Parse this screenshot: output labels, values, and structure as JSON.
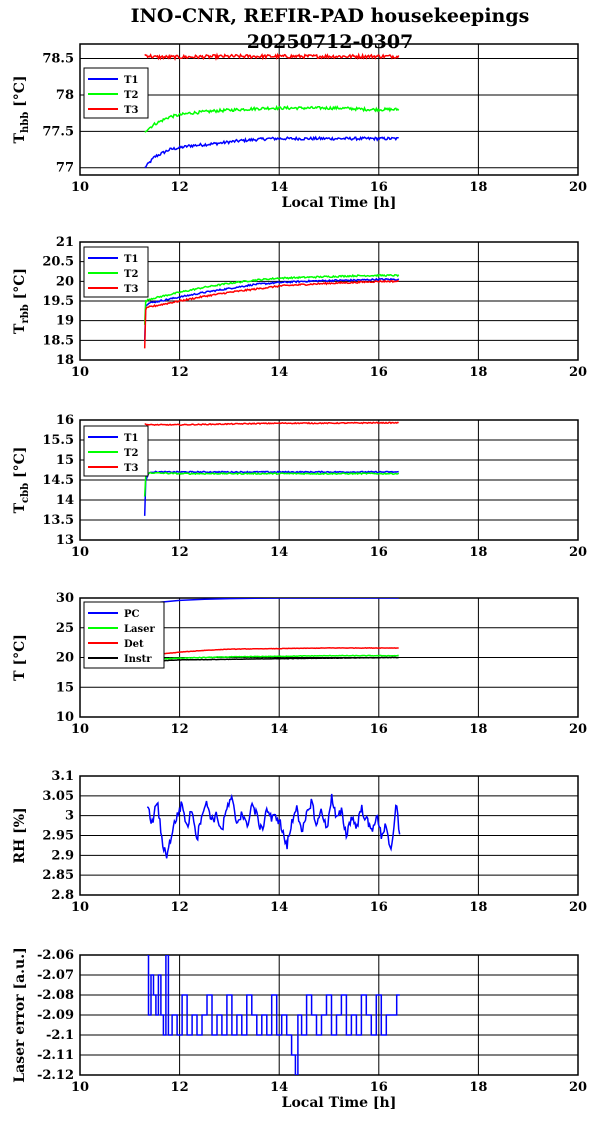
{
  "title_line1": "INO-CNR, REFIR-PAD housekeepings",
  "title_line2": "20250712-0307",
  "chart_data": [
    {
      "type": "line",
      "ylabel_main": "T",
      "ylabel_sub": "hbb",
      "ylabel_unit": " [°C]",
      "xlabel": "Local Time [h]",
      "xlim": [
        10,
        20
      ],
      "xticks": [
        "10",
        "12",
        "14",
        "16",
        "18",
        "20"
      ],
      "ylim": [
        76.9,
        78.7
      ],
      "yticks": [
        {
          "v": 77,
          "label": "77"
        },
        {
          "v": 77.5,
          "label": "77.5"
        },
        {
          "v": 78,
          "label": "78"
        },
        {
          "v": 78.5,
          "label": "78.5"
        }
      ],
      "series": [
        {
          "name": "T1",
          "color": "#0000ff",
          "x": [
            11.3,
            11.5,
            11.8,
            12.2,
            12.7,
            13.2,
            13.8,
            14.5,
            15.2,
            15.8,
            16.4
          ],
          "y": [
            77.0,
            77.15,
            77.25,
            77.3,
            77.33,
            77.37,
            77.4,
            77.4,
            77.4,
            77.4,
            77.4
          ],
          "noise": 0.02
        },
        {
          "name": "T2",
          "color": "#00ff00",
          "x": [
            11.3,
            11.5,
            11.8,
            12.2,
            12.7,
            13.2,
            13.8,
            14.5,
            15.2,
            15.8,
            16.4
          ],
          "y": [
            77.5,
            77.6,
            77.7,
            77.75,
            77.78,
            77.8,
            77.82,
            77.82,
            77.82,
            77.8,
            77.8
          ],
          "noise": 0.02
        },
        {
          "name": "T3",
          "color": "#ff0000",
          "x": [
            11.3,
            11.5,
            12.0,
            13.0,
            14.0,
            15.0,
            16.0,
            16.4
          ],
          "y": [
            78.55,
            78.52,
            78.52,
            78.53,
            78.53,
            78.53,
            78.53,
            78.53
          ],
          "noise": 0.025
        }
      ]
    },
    {
      "type": "line",
      "ylabel_main": "T",
      "ylabel_sub": "rbb",
      "ylabel_unit": " [°C]",
      "xlabel": "",
      "xlim": [
        10,
        20
      ],
      "xticks": [
        "10",
        "12",
        "14",
        "16",
        "18",
        "20"
      ],
      "ylim": [
        18,
        21
      ],
      "yticks": [
        {
          "v": 18,
          "label": "18"
        },
        {
          "v": 18.5,
          "label": "18.5"
        },
        {
          "v": 19,
          "label": "19"
        },
        {
          "v": 19.5,
          "label": "19.5"
        },
        {
          "v": 20,
          "label": "20"
        },
        {
          "v": 20.5,
          "label": "20.5"
        },
        {
          "v": 21,
          "label": "21"
        }
      ],
      "series": [
        {
          "name": "T1",
          "color": "#0000ff",
          "x": [
            11.3,
            11.32,
            11.4,
            12.0,
            12.5,
            13.0,
            13.5,
            14.0,
            14.5,
            15.0,
            15.5,
            16.0,
            16.4
          ],
          "y": [
            18.5,
            19.4,
            19.45,
            19.6,
            19.72,
            19.82,
            19.92,
            19.97,
            20.0,
            20.02,
            20.03,
            20.05,
            20.05
          ],
          "noise": 0.02
        },
        {
          "name": "T2",
          "color": "#00ff00",
          "x": [
            11.3,
            11.32,
            11.4,
            12.0,
            12.5,
            13.0,
            13.5,
            14.0,
            14.5,
            15.0,
            15.5,
            16.0,
            16.4
          ],
          "y": [
            18.9,
            19.5,
            19.55,
            19.72,
            19.85,
            19.95,
            20.03,
            20.08,
            20.1,
            20.12,
            20.14,
            20.15,
            20.15
          ],
          "noise": 0.02
        },
        {
          "name": "T3",
          "color": "#ff0000",
          "x": [
            11.3,
            11.32,
            11.4,
            12.0,
            12.5,
            13.0,
            13.5,
            14.0,
            14.5,
            15.0,
            15.5,
            16.0,
            16.4
          ],
          "y": [
            18.3,
            19.3,
            19.35,
            19.5,
            19.62,
            19.72,
            19.8,
            19.88,
            19.92,
            19.95,
            19.97,
            20.0,
            20.0
          ],
          "noise": 0.02
        }
      ]
    },
    {
      "type": "line",
      "ylabel_main": "T",
      "ylabel_sub": "cbb",
      "ylabel_unit": " [°C]",
      "xlabel": "",
      "xlim": [
        10,
        20
      ],
      "xticks": [
        "10",
        "12",
        "14",
        "16",
        "18",
        "20"
      ],
      "ylim": [
        13,
        16
      ],
      "yticks": [
        {
          "v": 13,
          "label": "13"
        },
        {
          "v": 13.5,
          "label": "13.5"
        },
        {
          "v": 14,
          "label": "14"
        },
        {
          "v": 14.5,
          "label": "14.5"
        },
        {
          "v": 15,
          "label": "15"
        },
        {
          "v": 15.5,
          "label": "15.5"
        },
        {
          "v": 16,
          "label": "16"
        }
      ],
      "series": [
        {
          "name": "T1",
          "color": "#0000ff",
          "x": [
            11.3,
            11.32,
            11.4,
            12.0,
            13.0,
            14.0,
            15.0,
            16.0,
            16.4
          ],
          "y": [
            13.6,
            14.5,
            14.7,
            14.7,
            14.7,
            14.7,
            14.7,
            14.7,
            14.7
          ],
          "noise": 0.015
        },
        {
          "name": "T2",
          "color": "#00ff00",
          "x": [
            11.3,
            11.32,
            11.4,
            12.0,
            13.0,
            14.0,
            15.0,
            16.0,
            16.4
          ],
          "y": [
            14.1,
            14.6,
            14.68,
            14.66,
            14.66,
            14.66,
            14.66,
            14.66,
            14.66
          ],
          "noise": 0.015
        },
        {
          "name": "T3",
          "color": "#ff0000",
          "x": [
            11.3,
            11.4,
            12.0,
            13.0,
            14.0,
            15.0,
            16.0,
            16.4
          ],
          "y": [
            15.9,
            15.88,
            15.88,
            15.9,
            15.92,
            15.92,
            15.93,
            15.93
          ],
          "noise": 0.012
        }
      ]
    },
    {
      "type": "line",
      "ylabel_main": "T [°C]",
      "ylabel_sub": "",
      "ylabel_unit": "",
      "xlabel": "",
      "xlim": [
        10,
        20
      ],
      "xticks": [
        "10",
        "12",
        "14",
        "16",
        "18",
        "20"
      ],
      "ylim": [
        10,
        30
      ],
      "yticks": [
        {
          "v": 10,
          "label": "10"
        },
        {
          "v": 15,
          "label": "15"
        },
        {
          "v": 20,
          "label": "20"
        },
        {
          "v": 25,
          "label": "25"
        },
        {
          "v": 30,
          "label": "30"
        }
      ],
      "series": [
        {
          "name": "PC",
          "color": "#0000ff",
          "x": [
            11.3,
            11.6,
            12.0,
            12.5,
            13.0,
            14.0,
            15.0,
            16.4
          ],
          "y": [
            29.0,
            29.3,
            29.6,
            29.8,
            29.9,
            30.0,
            30.0,
            30.0
          ],
          "noise": 0
        },
        {
          "name": "Laser",
          "color": "#00ff00",
          "x": [
            11.3,
            12.0,
            13.0,
            14.0,
            15.0,
            16.4
          ],
          "y": [
            19.6,
            19.9,
            20.1,
            20.2,
            20.3,
            20.3
          ],
          "noise": 0.05
        },
        {
          "name": "Det",
          "color": "#ff0000",
          "x": [
            11.3,
            12.0,
            12.5,
            13.0,
            14.0,
            15.0,
            16.4
          ],
          "y": [
            20.3,
            20.9,
            21.2,
            21.4,
            21.5,
            21.6,
            21.6
          ],
          "noise": 0.03
        },
        {
          "name": "Instr",
          "color": "#000000",
          "x": [
            11.3,
            12.0,
            13.0,
            14.0,
            15.0,
            16.4
          ],
          "y": [
            19.3,
            19.6,
            19.7,
            19.8,
            19.9,
            20.0
          ],
          "noise": 0.03
        }
      ]
    },
    {
      "type": "line",
      "ylabel_main": "RH [%]",
      "ylabel_sub": "",
      "ylabel_unit": "",
      "xlabel": "",
      "xlim": [
        10,
        20
      ],
      "xticks": [
        "10",
        "12",
        "14",
        "16",
        "18",
        "20"
      ],
      "ylim": [
        2.8,
        3.1
      ],
      "yticks": [
        {
          "v": 2.8,
          "label": "2.8"
        },
        {
          "v": 2.85,
          "label": "2.85"
        },
        {
          "v": 2.9,
          "label": "2.9"
        },
        {
          "v": 2.95,
          "label": "2.95"
        },
        {
          "v": 3.0,
          "label": "3"
        },
        {
          "v": 3.05,
          "label": "3.05"
        },
        {
          "v": 3.1,
          "label": "3.1"
        }
      ],
      "series": [
        {
          "name": "",
          "color": "#0000ff",
          "x": [
            11.35,
            11.45,
            11.55,
            11.65,
            11.75,
            11.85,
            11.95,
            12.05,
            12.15,
            12.25,
            12.35,
            12.45,
            12.55,
            12.65,
            12.75,
            12.85,
            12.95,
            13.05,
            13.15,
            13.25,
            13.35,
            13.45,
            13.55,
            13.65,
            13.75,
            13.85,
            13.95,
            14.05,
            14.15,
            14.25,
            14.35,
            14.45,
            14.55,
            14.65,
            14.75,
            14.85,
            14.95,
            15.05,
            15.15,
            15.25,
            15.35,
            15.45,
            15.55,
            15.65,
            15.75,
            15.85,
            15.95,
            16.05,
            16.15,
            16.25,
            16.35,
            16.42
          ],
          "y": [
            3.02,
            2.98,
            3.04,
            2.93,
            2.9,
            2.96,
            3.0,
            3.03,
            2.97,
            3.02,
            2.94,
            3.01,
            3.03,
            2.99,
            3.0,
            2.96,
            3.02,
            3.04,
            2.98,
            3.01,
            2.97,
            3.03,
            3.0,
            2.96,
            3.02,
            2.99,
            3.0,
            2.97,
            2.92,
            2.98,
            3.03,
            2.95,
            3.0,
            3.04,
            2.97,
            3.02,
            2.96,
            3.05,
            2.99,
            3.01,
            2.95,
            3.0,
            2.97,
            3.02,
            2.99,
            2.96,
            3.0,
            2.95,
            2.98,
            2.9,
            3.03,
            2.95
          ],
          "noise": 0.012
        }
      ]
    },
    {
      "type": "line",
      "ylabel_main": "Laser error [a.u.]",
      "ylabel_sub": "",
      "ylabel_unit": "",
      "xlabel": "Local Time [h]",
      "xlim": [
        10,
        20
      ],
      "xticks": [
        "10",
        "12",
        "14",
        "16",
        "18",
        "20"
      ],
      "ylim": [
        -2.12,
        -2.06
      ],
      "yticks": [
        {
          "v": -2.12,
          "label": "-2.12"
        },
        {
          "v": -2.11,
          "label": "-2.11"
        },
        {
          "v": -2.1,
          "label": "-2.1"
        },
        {
          "v": -2.09,
          "label": "-2.09"
        },
        {
          "v": -2.08,
          "label": "-2.08"
        },
        {
          "v": -2.07,
          "label": "-2.07"
        },
        {
          "v": -2.06,
          "label": "-2.06"
        }
      ],
      "series": [
        {
          "name": "",
          "color": "#0000ff",
          "x": [
            11.35,
            11.4,
            11.45,
            11.5,
            11.55,
            11.6,
            11.65,
            11.7,
            11.75,
            11.8,
            11.9,
            12.0,
            12.1,
            12.2,
            12.3,
            12.4,
            12.5,
            12.6,
            12.7,
            12.8,
            12.9,
            13.0,
            13.1,
            13.2,
            13.3,
            13.4,
            13.5,
            13.6,
            13.7,
            13.8,
            13.9,
            14.0,
            14.1,
            14.2,
            14.3,
            14.35,
            14.4,
            14.5,
            14.6,
            14.7,
            14.8,
            14.9,
            15.0,
            15.1,
            15.2,
            15.3,
            15.4,
            15.5,
            15.6,
            15.7,
            15.8,
            15.9,
            16.0,
            16.1,
            16.2,
            16.3,
            16.42
          ],
          "y": [
            -2.06,
            -2.09,
            -2.07,
            -2.08,
            -2.09,
            -2.07,
            -2.09,
            -2.1,
            -2.06,
            -2.1,
            -2.09,
            -2.1,
            -2.08,
            -2.1,
            -2.09,
            -2.1,
            -2.09,
            -2.08,
            -2.1,
            -2.09,
            -2.1,
            -2.08,
            -2.1,
            -2.09,
            -2.1,
            -2.08,
            -2.09,
            -2.1,
            -2.09,
            -2.1,
            -2.08,
            -2.1,
            -2.09,
            -2.1,
            -2.11,
            -2.12,
            -2.09,
            -2.1,
            -2.08,
            -2.09,
            -2.1,
            -2.09,
            -2.08,
            -2.1,
            -2.09,
            -2.08,
            -2.1,
            -2.09,
            -2.1,
            -2.08,
            -2.09,
            -2.1,
            -2.08,
            -2.1,
            -2.09,
            -2.09,
            -2.08
          ],
          "noise": 0,
          "quantize": 0.005
        }
      ]
    }
  ]
}
